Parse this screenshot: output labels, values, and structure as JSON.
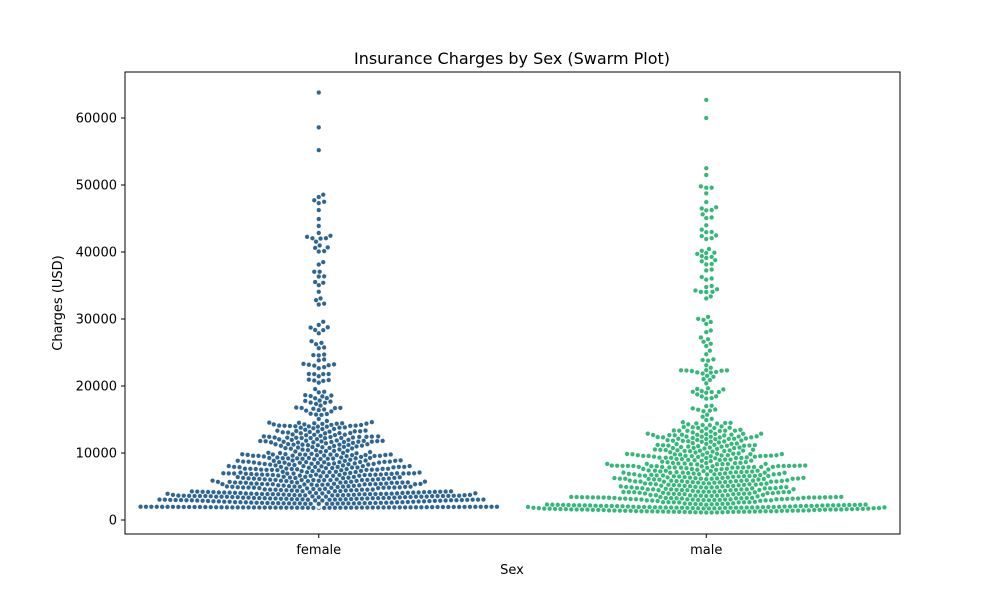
{
  "chart_data": {
    "type": "scatter",
    "subtype": "swarm",
    "title": "Insurance Charges by Sex (Swarm Plot)",
    "xlabel": "Sex",
    "ylabel": "Charges (USD)",
    "categories": [
      "female",
      "male"
    ],
    "colors": {
      "female": "#2e6691",
      "male": "#35b779"
    },
    "ylim": [
      -2000,
      67000
    ],
    "yticks": [
      0,
      10000,
      20000,
      30000,
      40000,
      50000,
      60000
    ],
    "ytick_labels": [
      "0",
      "10000",
      "20000",
      "30000",
      "40000",
      "50000",
      "60000"
    ],
    "grid": false,
    "legend": "none",
    "series": [
      {
        "category": "female",
        "density": [
          [
            1800,
            2000,
            70
          ],
          [
            2000,
            2600,
            95
          ],
          [
            2600,
            4000,
            120
          ],
          [
            4000,
            6000,
            115
          ],
          [
            6000,
            8000,
            95
          ],
          [
            8000,
            10000,
            80
          ],
          [
            10000,
            12500,
            70
          ],
          [
            12500,
            14500,
            45
          ],
          [
            14500,
            17000,
            18
          ],
          [
            17000,
            20000,
            16
          ],
          [
            20000,
            23000,
            12
          ],
          [
            23000,
            26000,
            12
          ],
          [
            26000,
            30000,
            10
          ],
          [
            32000,
            38000,
            12
          ],
          [
            38000,
            42000,
            8
          ],
          [
            42000,
            46000,
            8
          ],
          [
            46000,
            49000,
            6
          ]
        ],
        "outliers": [
          55200,
          58600,
          63800
        ]
      },
      {
        "category": "male",
        "density": [
          [
            1100,
            1800,
            70
          ],
          [
            1800,
            2300,
            60
          ],
          [
            2300,
            4000,
            90
          ],
          [
            4000,
            6000,
            90
          ],
          [
            6000,
            8000,
            85
          ],
          [
            8000,
            10000,
            75
          ],
          [
            10000,
            12500,
            65
          ],
          [
            12500,
            14500,
            35
          ],
          [
            14500,
            17000,
            12
          ],
          [
            17000,
            20000,
            14
          ],
          [
            20000,
            23000,
            16
          ],
          [
            23000,
            27000,
            10
          ],
          [
            27000,
            30500,
            8
          ],
          [
            33000,
            37000,
            12
          ],
          [
            37000,
            40500,
            14
          ],
          [
            40500,
            44000,
            8
          ],
          [
            44000,
            48000,
            8
          ],
          [
            48000,
            50000,
            4
          ]
        ],
        "outliers": [
          51500,
          52500,
          60000,
          62700
        ]
      }
    ]
  }
}
